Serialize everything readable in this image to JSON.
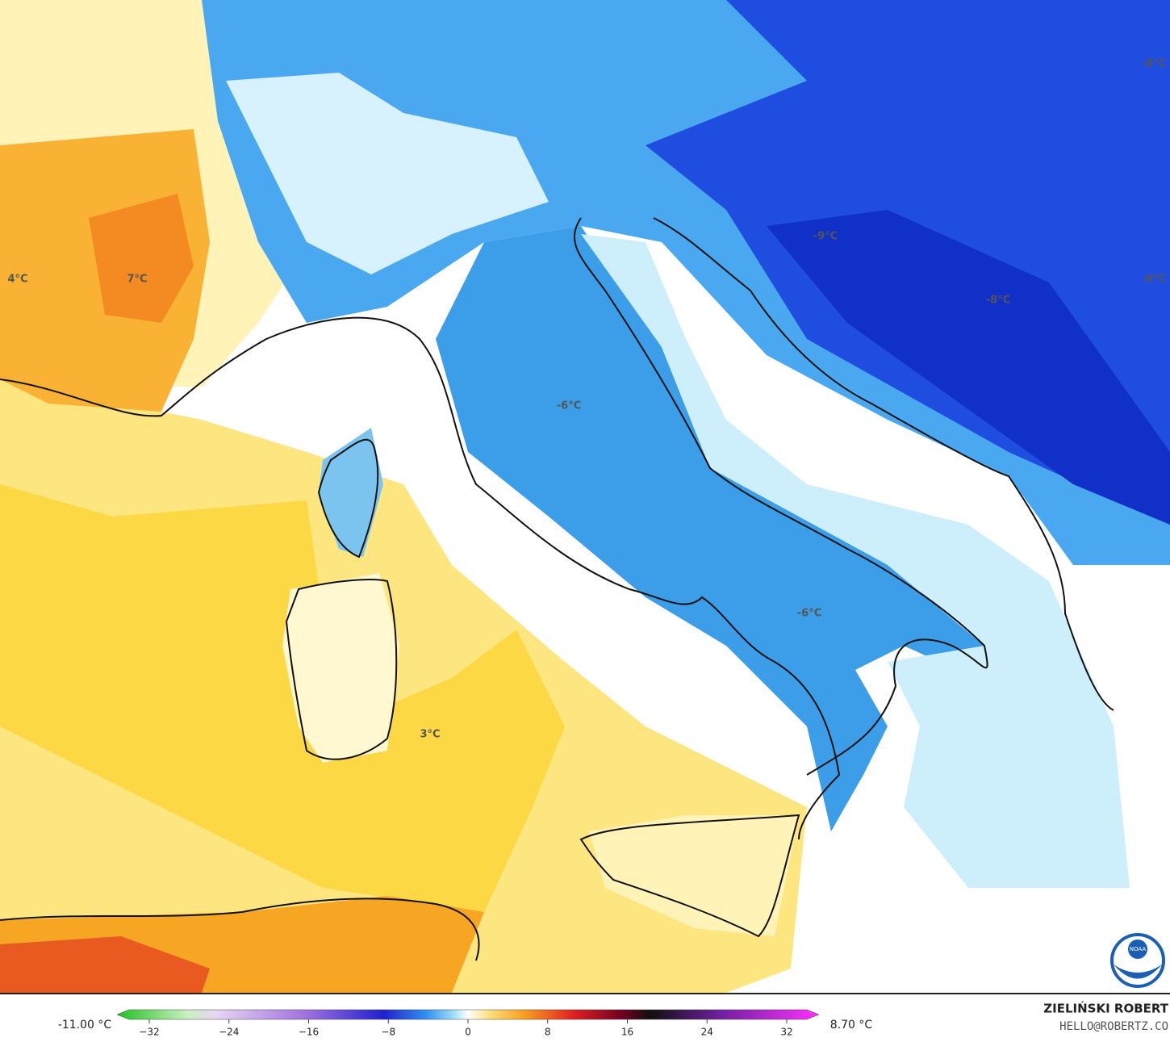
{
  "map_labels": [
    "4°C",
    "7°C",
    "-6°C",
    "-6°C",
    "3°C",
    "-9°C",
    "-8°C",
    "-8°C",
    "-8°C"
  ],
  "legend": {
    "min": "-11.00 °C",
    "max": "8.70 °C",
    "ticks": [
      "−32",
      "−24",
      "−16",
      "−8",
      "0",
      "8",
      "16",
      "24",
      "32"
    ]
  },
  "credit": {
    "author": "ZIELIŃSKI ROBERT",
    "contact": "HELLO@ROBERTZ.CO",
    "logo": "NOAA"
  }
}
